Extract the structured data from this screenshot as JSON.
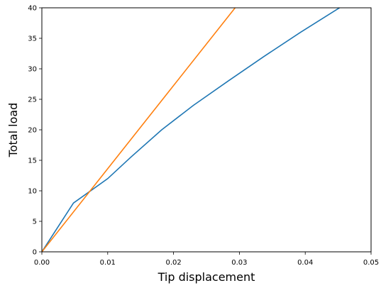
{
  "chart_data": {
    "type": "line",
    "title": "",
    "xlabel": "Tip displacement",
    "ylabel": "Total load",
    "xlim": [
      0,
      0.05
    ],
    "ylim": [
      0,
      40
    ],
    "x_ticks": [
      "0.00",
      "0.01",
      "0.02",
      "0.03",
      "0.04",
      "0.05"
    ],
    "y_ticks": [
      "0",
      "5",
      "10",
      "15",
      "20",
      "25",
      "30",
      "35",
      "40"
    ],
    "x_tick_values": [
      0,
      0.01,
      0.02,
      0.03,
      0.04,
      0.05
    ],
    "y_tick_values": [
      0,
      5,
      10,
      15,
      20,
      25,
      30,
      35,
      40
    ],
    "grid": false,
    "legend": "none",
    "series": [
      {
        "color": "#1f77b4",
        "points": [
          [
            0,
            0
          ],
          [
            0.0048,
            8
          ],
          [
            0.01,
            12
          ],
          [
            0.0135,
            15.5
          ],
          [
            0.0182,
            20
          ],
          [
            0.023,
            24
          ],
          [
            0.0283,
            28
          ],
          [
            0.0337,
            32
          ],
          [
            0.0393,
            36
          ],
          [
            0.0455,
            40.2
          ]
        ]
      },
      {
        "color": "#ff7f0e",
        "points": [
          [
            0,
            0
          ],
          [
            0.0295,
            40.2
          ]
        ]
      }
    ]
  }
}
